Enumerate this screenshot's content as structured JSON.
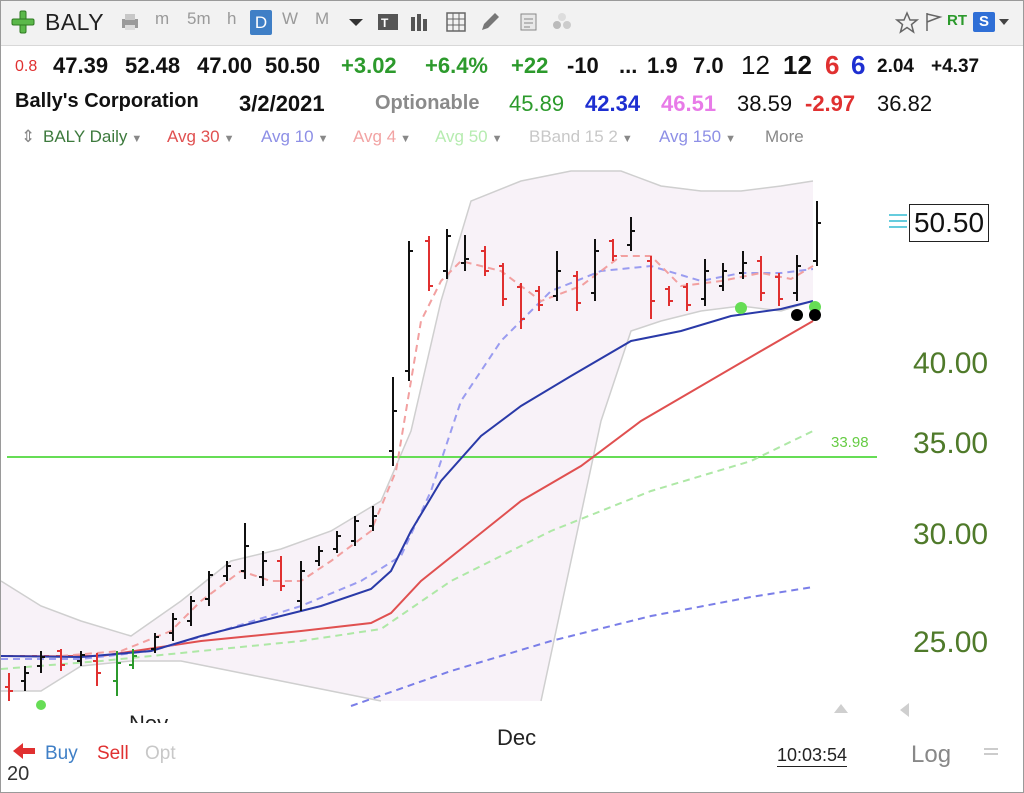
{
  "toolbar": {
    "symbol": "BALY",
    "items": [
      "m",
      "5m",
      "h",
      "D",
      "W",
      "M"
    ],
    "rt_label": "RT",
    "s_label": "S"
  },
  "quote": {
    "change_small": "0.8",
    "open": "47.39",
    "high": "52.48",
    "low": "47.00",
    "close": "50.50",
    "change": "+3.02",
    "change_pct": "+6.4%",
    "v1": "+22",
    "v2": "-10",
    "v3": "...",
    "v4": "1.9",
    "v5": "7.0",
    "v6": "12",
    "v7": "12",
    "v8": "6",
    "v9": "6",
    "v10": "2.04",
    "v11": "+4.37"
  },
  "info": {
    "company": "Bally's Corporation",
    "date": "3/2/2021",
    "optionable": "Optionable",
    "v1": "45.89",
    "v2": "42.34",
    "v3": "46.51",
    "v4": "38.59",
    "v5": "-2.97",
    "v6": "36.82"
  },
  "legend": {
    "items": [
      {
        "label": "BALY Daily",
        "color": "#3d7a3d"
      },
      {
        "label": "Avg 30",
        "color": "#e05050"
      },
      {
        "label": "Avg 10",
        "color": "#8d8fe6"
      },
      {
        "label": "Avg 4",
        "color": "#f2a3a3"
      },
      {
        "label": "Avg 50",
        "color": "#b6ecb0"
      },
      {
        "label": "BBand 15 2",
        "color": "#c8c8c8"
      },
      {
        "label": "Avg 150",
        "color": "#8d8fe6"
      },
      {
        "label": "More",
        "color": "#888888"
      }
    ]
  },
  "chart": {
    "y_ticks": [
      "40.00",
      "35.00",
      "30.00",
      "25.00"
    ],
    "last_price": "50.50",
    "horizontal_line_label": "33.98",
    "x_labels": [
      "Nov",
      "Dec"
    ]
  },
  "bottom": {
    "buy_label": "Buy",
    "sell_label": "Sell",
    "opt_label": "Opt",
    "number": "20",
    "time": "10:03:54",
    "log_label": "Log"
  },
  "colors": {
    "up_green": "#2c9a2c",
    "down_red": "#e03030",
    "blue": "#1e2fd1",
    "pink": "#e87be8"
  }
}
